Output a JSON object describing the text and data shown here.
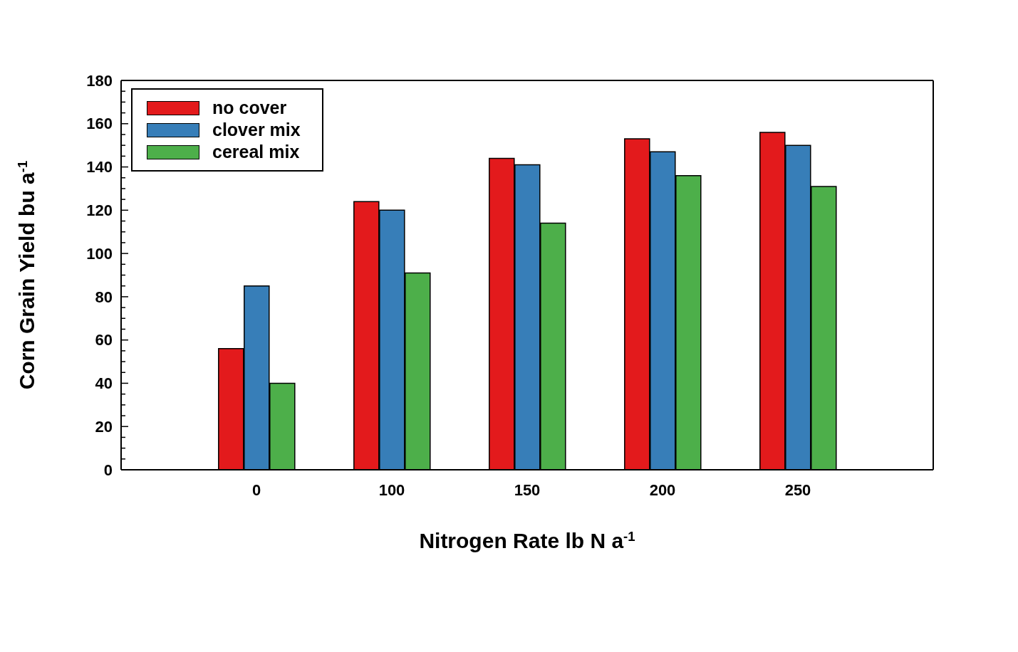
{
  "chart_data": {
    "type": "bar",
    "xlabel": "Nitrogen Rate lb N a$^{-1}$",
    "ylabel": "Corn Grain Yield bu a$^{-1}$",
    "categories": [
      "0",
      "100",
      "150",
      "200",
      "250"
    ],
    "series": [
      {
        "name": "no cover",
        "color": "#e31a1c",
        "values": [
          56,
          124,
          144,
          153,
          156
        ]
      },
      {
        "name": "clover mix",
        "color": "#377eb8",
        "values": [
          85,
          120,
          141,
          147,
          150
        ]
      },
      {
        "name": "cereal mix",
        "color": "#4daf4a",
        "values": [
          40,
          91,
          114,
          136,
          131
        ]
      }
    ],
    "ylim": [
      0,
      180
    ],
    "yticks": [
      0,
      {
        "value": 5,
        "label": null
      },
      {
        "value": 10,
        "label": null
      },
      {
        "value": 15,
        "label": null
      },
      20,
      {
        "value": 25,
        "label": null
      },
      {
        "value": 30,
        "label": null
      },
      {
        "value": 35,
        "label": null
      },
      40,
      {
        "value": 45,
        "label": null
      },
      {
        "value": 50,
        "label": null
      },
      {
        "value": 55,
        "label": null
      },
      60,
      {
        "value": 65,
        "label": null
      },
      {
        "value": 70,
        "label": null
      },
      {
        "value": 75,
        "label": null
      },
      80,
      {
        "value": 85,
        "label": null
      },
      {
        "value": 90,
        "label": null
      },
      {
        "value": 95,
        "label": null
      },
      100,
      {
        "value": 105,
        "label": null
      },
      {
        "value": 110,
        "label": null
      },
      {
        "value": 115,
        "label": null
      },
      120,
      {
        "value": 125,
        "label": null
      },
      {
        "value": 130,
        "label": null
      },
      {
        "value": 135,
        "label": null
      },
      140,
      {
        "value": 145,
        "label": null
      },
      {
        "value": 150,
        "label": null
      },
      {
        "value": 155,
        "label": null
      },
      160,
      {
        "value": 165,
        "label": null
      },
      {
        "value": 170,
        "label": null
      },
      {
        "value": 175,
        "label": null
      },
      180
    ],
    "legend": "top left"
  }
}
